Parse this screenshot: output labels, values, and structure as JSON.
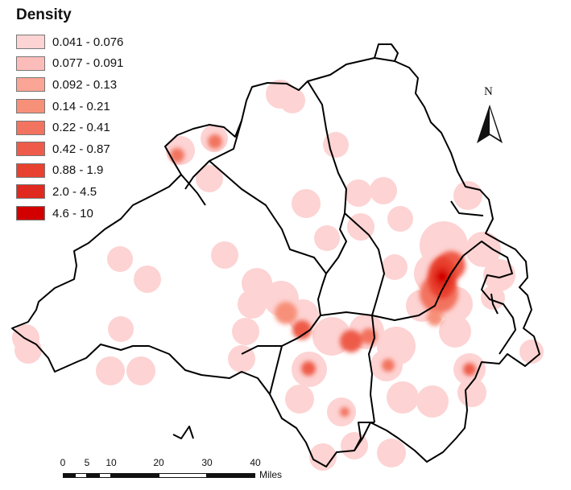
{
  "legend": {
    "title": "Density",
    "classes": [
      {
        "label": "0.041 - 0.076",
        "color": "#FDD3D3"
      },
      {
        "label": "0.077 - 0.091",
        "color": "#FCBDBA"
      },
      {
        "label": "0.092 - 0.13",
        "color": "#FAA595"
      },
      {
        "label": "0.14 - 0.21",
        "color": "#F79079"
      },
      {
        "label": "0.22 - 0.41",
        "color": "#F2735F"
      },
      {
        "label": "0.42 - 0.87",
        "color": "#EE5B4A"
      },
      {
        "label": "0.88 - 1.9",
        "color": "#E8412F"
      },
      {
        "label": "2.0 - 4.5",
        "color": "#E02A1F"
      },
      {
        "label": "4.6 - 10",
        "color": "#D30000"
      }
    ]
  },
  "north_arrow": {
    "letter": "N"
  },
  "scale_bar": {
    "ticks": [
      "0",
      "5",
      "10",
      "20",
      "30",
      "40"
    ],
    "unit": "Miles"
  },
  "colors": {
    "boundary": "#000000",
    "background": "#FFFFFF"
  }
}
